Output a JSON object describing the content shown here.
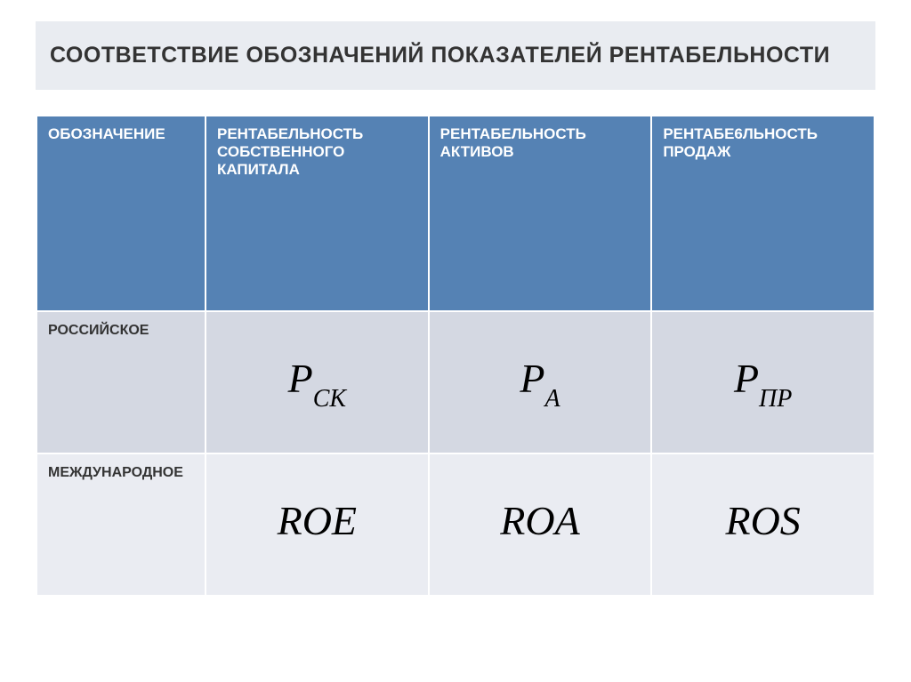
{
  "title": "СООТВЕТСТВИЕ ОБОЗНАЧЕНИЙ ПОКАЗАТЕЛЕЙ РЕНТАБЕЛЬНОСТИ",
  "colors": {
    "title_bg": "#e9ecf1",
    "header_bg": "#5582b4",
    "header_text": "#ffffff",
    "row_alt1_bg": "#d4d8e2",
    "row_alt2_bg": "#eaecf2",
    "border": "#ffffff",
    "text": "#333333",
    "formula_text": "#000000"
  },
  "typography": {
    "title_fontsize": 25,
    "header_fontsize": 17,
    "rowlabel_fontsize": 16,
    "formula_fontsize": 46,
    "formula_sub_fontsize": 28,
    "formula_family": "Times New Roman",
    "formula_style": "italic"
  },
  "table": {
    "columns": [
      "ОБОЗНАЧЕНИЕ",
      "РЕНТАБЕЛЬНОСТЬ СОБСТВЕННОГО КАПИТАЛА",
      "РЕНТАБЕЛЬНОСТЬ АКТИВОВ",
      "РЕНТАБЕ6ЛЬНОСТЬ ПРОДАЖ"
    ],
    "rows": [
      {
        "label": "РОССИЙСКОЕ",
        "cells": [
          {
            "base": "Р",
            "sub": "СК"
          },
          {
            "base": "Р",
            "sub": "А"
          },
          {
            "base": "Р",
            "sub": "ПР"
          }
        ]
      },
      {
        "label": "МЕЖДУНАРОДНОЕ",
        "cells": [
          {
            "base": "ROE",
            "sub": ""
          },
          {
            "base": "ROA",
            "sub": ""
          },
          {
            "base": "ROS",
            "sub": ""
          }
        ]
      }
    ]
  }
}
